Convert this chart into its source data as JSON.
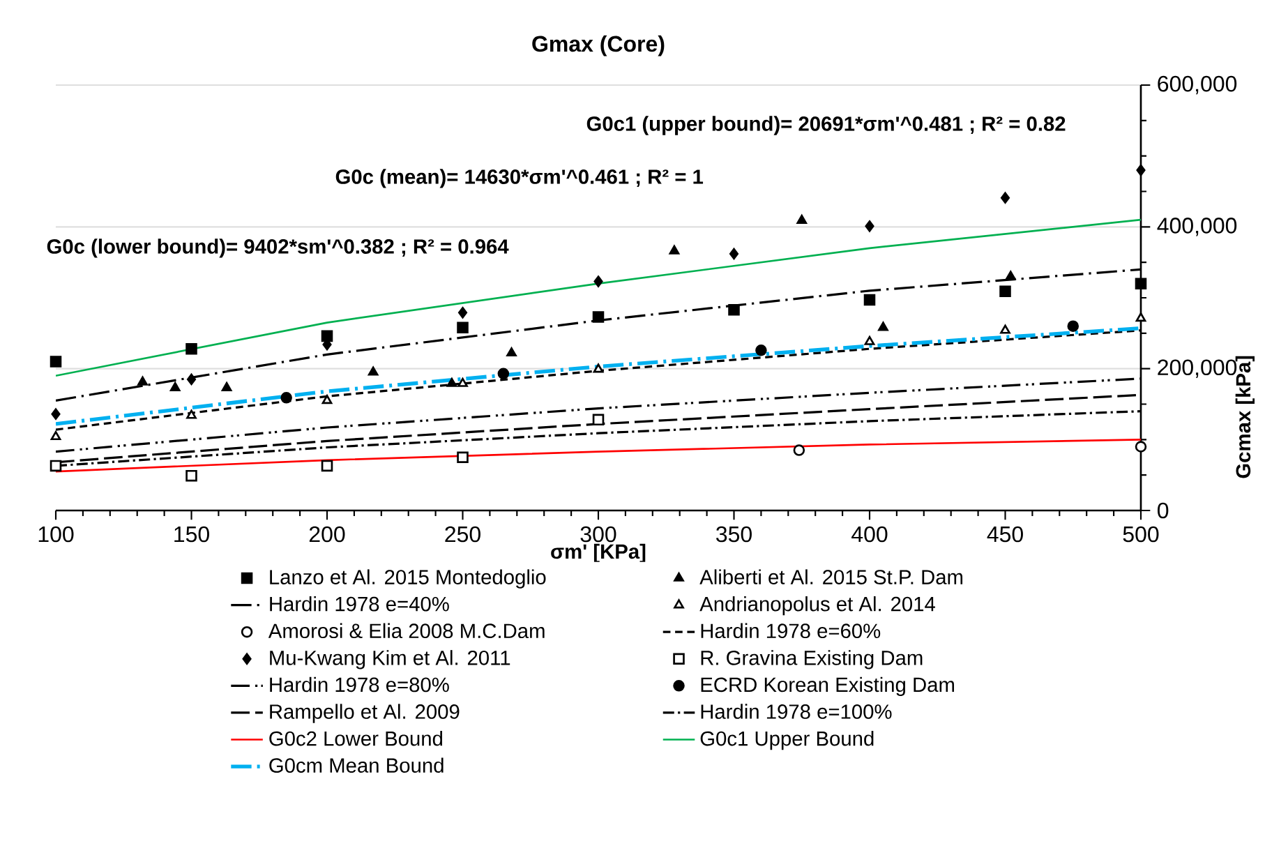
{
  "chart_data": {
    "type": "scatter",
    "title": "Gmax (Core)",
    "xlabel": "σm' [KPa]",
    "ylabel": "Gcmax  [kPa]",
    "xlim": [
      100,
      500
    ],
    "xticks": [
      100,
      150,
      200,
      250,
      300,
      350,
      400,
      450,
      500
    ],
    "ylim": [
      0,
      600000
    ],
    "yticks": [
      {
        "value": 0,
        "label": "0"
      },
      {
        "value": 200000,
        "label": "200,000"
      },
      {
        "value": 400000,
        "label": "400,000"
      },
      {
        "value": 600000,
        "label": "600,000"
      }
    ],
    "grid": "y",
    "legend": "bottom",
    "annotations": [
      "G0c1 (upper bound)= 20691*σm'^0.481 ;  R² = 0.82",
      "G0c (mean)= 14630*σm'^0.461 ;  R² = 1",
      "G0c (lower bound)= 9402*sm'^0.382 ;  R² = 0.964"
    ],
    "series": [
      {
        "name": "Lanzo et Al. 2015 Montedoglio",
        "marker": "square",
        "color": "#000000",
        "x": [
          100,
          150,
          200,
          250,
          300,
          350,
          400,
          450,
          500
        ],
        "values": [
          210000,
          228000,
          246000,
          258000,
          273000,
          283000,
          297000,
          309000,
          320000
        ]
      },
      {
        "name": "Aliberti et Al. 2015 St.P. Dam",
        "marker": "triangle",
        "color": "#000000",
        "x": [
          132,
          144,
          163,
          217,
          246,
          268,
          328,
          375,
          405,
          452
        ],
        "values": [
          181000,
          173000,
          173000,
          195000,
          179000,
          222000,
          366000,
          409000,
          258000,
          330000
        ]
      },
      {
        "name": "Hardin 1978 e=40%",
        "type": "line",
        "marker": "none",
        "line_style": "longdashdot",
        "color": "#000000",
        "x": [
          100,
          200,
          300,
          400,
          500
        ],
        "values": [
          155000,
          220000,
          268000,
          310000,
          340000
        ]
      },
      {
        "name": "Andrianopolus et Al. 2014",
        "marker": "triangle",
        "color": "#ffffff",
        "x": [
          100,
          150,
          200,
          250,
          300,
          400,
          450,
          500
        ],
        "values": [
          104000,
          134000,
          155000,
          179000,
          199000,
          238000,
          254000,
          271000
        ]
      },
      {
        "name": "Amorosi & Elia 2008 M.C.Dam",
        "marker": "circle",
        "color": "#ffffff",
        "x": [
          374,
          500
        ],
        "values": [
          85000,
          90000
        ]
      },
      {
        "name": "Hardin 1978 e=60%",
        "type": "line",
        "marker": "none",
        "line_style": "dashed",
        "color": "#000000",
        "x": [
          100,
          200,
          300,
          400,
          500
        ],
        "values": [
          114000,
          161000,
          197000,
          228000,
          254000
        ]
      },
      {
        "name": "Mu-Kwang Kim et Al. 2011",
        "marker": "diamond",
        "color": "#000000",
        "x": [
          100,
          150,
          200,
          250,
          300,
          350,
          400,
          450,
          500
        ],
        "values": [
          136000,
          185000,
          234000,
          279000,
          323000,
          362000,
          401000,
          441000,
          480000
        ]
      },
      {
        "name": "R. Gravina Existing Dam",
        "marker": "square",
        "color": "#ffffff",
        "x": [
          100,
          150,
          200,
          250,
          300
        ],
        "values": [
          63000,
          49000,
          63000,
          75000,
          128000
        ]
      },
      {
        "name": "Hardin 1978 e=80%",
        "type": "line",
        "marker": "none",
        "line_style": "dashdotdot",
        "color": "#000000",
        "x": [
          100,
          200,
          300,
          400,
          500
        ],
        "values": [
          83000,
          117000,
          144000,
          166000,
          186000
        ]
      },
      {
        "name": "ECRD Korean Existing Dam",
        "marker": "circle",
        "color": "#000000",
        "x": [
          185,
          265,
          360,
          475
        ],
        "values": [
          159000,
          193000,
          226000,
          260000
        ]
      },
      {
        "name": "Rampello et Al. 2009",
        "type": "line",
        "marker": "none",
        "line_style": "longdash",
        "color": "#000000",
        "x": [
          100,
          200,
          300,
          400,
          500
        ],
        "values": [
          68000,
          98000,
          122000,
          143000,
          163000
        ]
      },
      {
        "name": "Hardin 1978 e=100%",
        "type": "line",
        "marker": "none",
        "line_style": "dashdot",
        "color": "#000000",
        "x": [
          100,
          200,
          300,
          400,
          500
        ],
        "values": [
          63000,
          89000,
          109000,
          126000,
          140000
        ]
      },
      {
        "name": "G0c2 Lower Bound",
        "type": "line",
        "marker": "none",
        "line_style": "solid",
        "color": "#ff0000",
        "x": [
          100,
          200,
          300,
          400,
          500
        ],
        "values": [
          55000,
          71000,
          83000,
          93000,
          100000
        ]
      },
      {
        "name": "G0c1 Upper Bound",
        "type": "line",
        "marker": "none",
        "line_style": "solid",
        "color": "#00b050",
        "x": [
          100,
          200,
          300,
          400,
          500
        ],
        "values": [
          190000,
          265000,
          320000,
          370000,
          410000
        ]
      },
      {
        "name": "G0cm Mean Bound",
        "type": "line",
        "marker": "none",
        "line_style": "thickdashdot",
        "color": "#00b0f0",
        "x": [
          100,
          200,
          300,
          400,
          500
        ],
        "values": [
          122000,
          168000,
          203000,
          232000,
          257000
        ]
      }
    ]
  }
}
